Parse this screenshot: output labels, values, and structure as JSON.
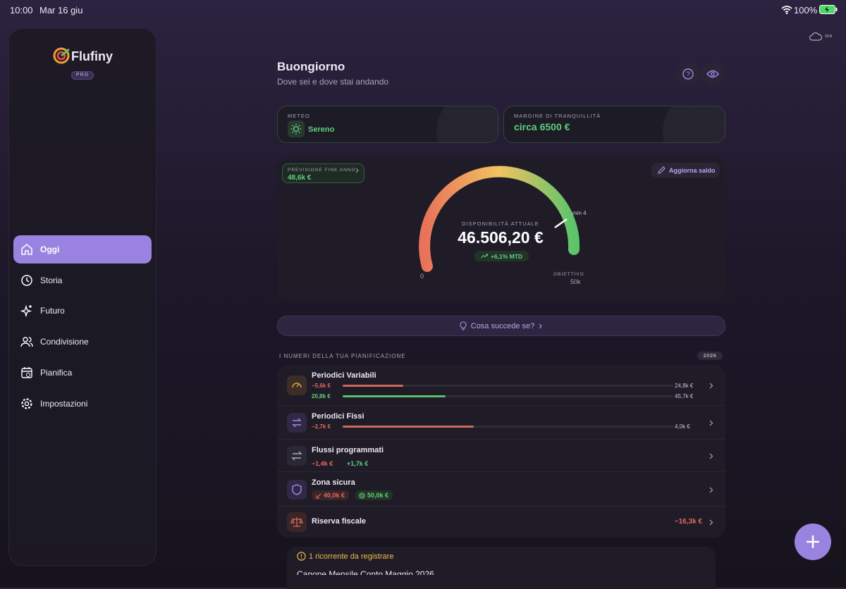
{
  "status_bar": {
    "time": "10:00",
    "date": "Mar 16 giu",
    "battery": "100%"
  },
  "sync": "ora",
  "sidebar": {
    "brand": "Flufiny",
    "badge": "PRO",
    "nav": [
      {
        "label": "Oggi",
        "active": true
      },
      {
        "label": "Storia",
        "active": false
      },
      {
        "label": "Futuro",
        "active": false
      },
      {
        "label": "Condivisione",
        "active": false
      },
      {
        "label": "Pianifica",
        "active": false
      },
      {
        "label": "Impostazioni",
        "active": false
      }
    ]
  },
  "header": {
    "title": "Buongiorno",
    "subtitle": "Dove sei e dove stai andando"
  },
  "cards": [
    {
      "label": "METEO",
      "value": "Sereno"
    },
    {
      "label": "MARGINE DI TRANQUILLITÀ",
      "value": "circa 6500 €"
    }
  ],
  "gauge": {
    "forecast_label": "PREVISIONE FINE ANNO",
    "forecast_value": "48,6k €",
    "update_button": "Aggiorna saldo",
    "label": "DISPONIBILITÀ ATTUALE",
    "value": "46.506,20 €",
    "change": "+6,1% MTD",
    "min_marker": "min 4",
    "scale_min": "0",
    "target_label": "OBIETTIVO",
    "scale_max": "50k"
  },
  "what_if": "Cosa succede se?",
  "plan": {
    "title": "I NUMERI DELLA TUA PIANIFICAZIONE",
    "year": "2026",
    "rows": [
      {
        "title": "Periodici Variabili",
        "bars": [
          {
            "amount": "−5,6k €",
            "total": "24,8k €"
          },
          {
            "amount": "20,8k €",
            "total": "45,7k €"
          }
        ]
      },
      {
        "title": "Periodici Fissi",
        "bars": [
          {
            "amount": "−2,7k €",
            "total": "4,0k €"
          }
        ]
      },
      {
        "title": "Flussi programmati",
        "amounts": [
          "−1,4k €",
          "+1,7k €"
        ]
      },
      {
        "title": "Zona sicura",
        "chips": [
          "40,0k €",
          "50,0k €"
        ]
      },
      {
        "title": "Riserva fiscale",
        "value": "−16,3k €"
      }
    ]
  },
  "reminder": {
    "title": "1 ricorrente da registrare",
    "item": "Canone Mensile Conto Maggio 2026"
  }
}
